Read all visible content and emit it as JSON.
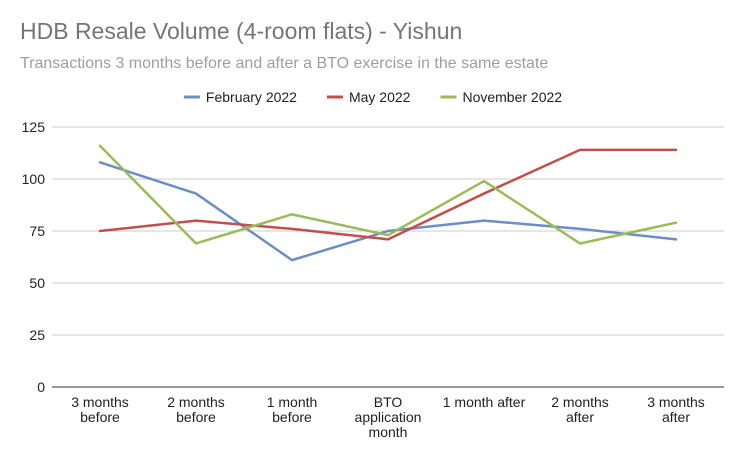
{
  "chart_data": {
    "type": "line",
    "title": "HDB Resale Volume (4-room flats) - Yishun",
    "subtitle": "Transactions 3 months before and after a BTO exercise in the same estate",
    "categories": [
      [
        "3 months",
        "before"
      ],
      [
        "2 months",
        "before"
      ],
      [
        "1 month",
        "before"
      ],
      [
        "BTO",
        "application",
        "month"
      ],
      [
        "1 month after"
      ],
      [
        "2 months",
        "after"
      ],
      [
        "3 months",
        "after"
      ]
    ],
    "series": [
      {
        "name": "February 2022",
        "color": "#6b8fc4",
        "values": [
          108,
          93,
          61,
          75,
          80,
          76,
          71
        ]
      },
      {
        "name": "May 2022",
        "color": "#c0504d",
        "values": [
          75,
          80,
          76,
          71,
          93,
          114,
          114
        ]
      },
      {
        "name": "November 2022",
        "color": "#9bbb59",
        "values": [
          116,
          69,
          83,
          73,
          99,
          69,
          79
        ]
      }
    ],
    "yticks": [
      0,
      25,
      50,
      75,
      100,
      125
    ],
    "ylim": [
      0,
      125
    ],
    "grid": true,
    "legend_position": "top"
  }
}
